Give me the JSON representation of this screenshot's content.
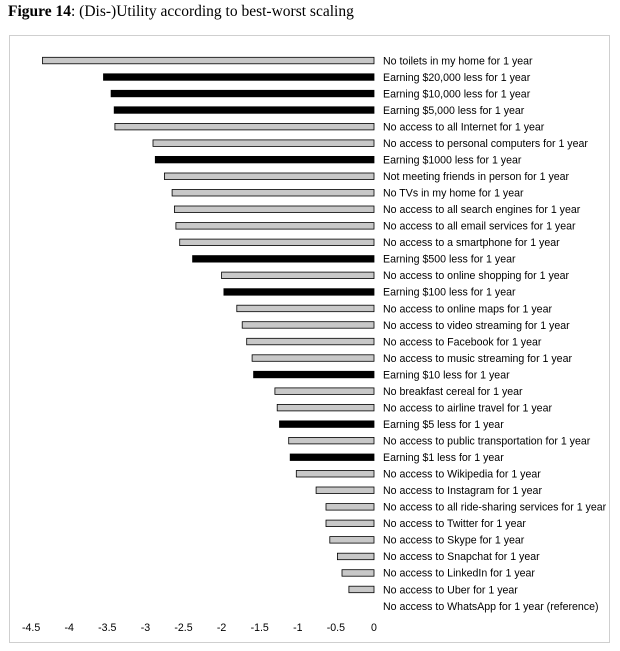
{
  "caption": {
    "figure_label": "Figure 14",
    "title": ": (Dis-)Utility according to best-worst scaling"
  },
  "chart_data": {
    "type": "bar",
    "orientation": "horizontal",
    "xlim": [
      -4.5,
      0
    ],
    "xticks": [
      "-4.5",
      "-4",
      "-3.5",
      "-3",
      "-2.5",
      "-2",
      "-1.5",
      "-1",
      "-0.5",
      "0"
    ],
    "grid": false,
    "legend": "none",
    "colors": {
      "money": "#000000",
      "good": "#c8c8c8",
      "outline": "#000000"
    },
    "bars": [
      {
        "label": "No toilets in my home for 1 year",
        "value": -4.35,
        "kind": "good"
      },
      {
        "label": "Earning $20,000 less for 1 year",
        "value": -3.55,
        "kind": "money"
      },
      {
        "label": "Earning $10,000 less for 1 year",
        "value": -3.45,
        "kind": "money"
      },
      {
        "label": "Earning $5,000 less for 1 year",
        "value": -3.41,
        "kind": "money"
      },
      {
        "label": "No access to all Internet for 1 year",
        "value": -3.4,
        "kind": "good"
      },
      {
        "label": "No access to personal computers for 1 year",
        "value": -2.9,
        "kind": "good"
      },
      {
        "label": "Earning $1000 less for 1 year",
        "value": -2.87,
        "kind": "money"
      },
      {
        "label": "Not meeting friends in person for 1 year",
        "value": -2.75,
        "kind": "good"
      },
      {
        "label": "No TVs in my home for 1 year",
        "value": -2.65,
        "kind": "good"
      },
      {
        "label": "No access to all search engines for 1 year",
        "value": -2.62,
        "kind": "good"
      },
      {
        "label": "No access to all email services for 1 year",
        "value": -2.6,
        "kind": "good"
      },
      {
        "label": "No access to a smartphone for 1 year",
        "value": -2.55,
        "kind": "good"
      },
      {
        "label": "Earning $500 less for 1 year",
        "value": -2.38,
        "kind": "money"
      },
      {
        "label": "No access to online shopping for 1 year",
        "value": -2.0,
        "kind": "good"
      },
      {
        "label": "Earning $100 less for 1 year",
        "value": -1.97,
        "kind": "money"
      },
      {
        "label": "No access to online maps for 1 year",
        "value": -1.8,
        "kind": "good"
      },
      {
        "label": "No access to video streaming for 1 year",
        "value": -1.73,
        "kind": "good"
      },
      {
        "label": "No access to Facebook for 1 year",
        "value": -1.67,
        "kind": "good"
      },
      {
        "label": "No access to music streaming for 1 year",
        "value": -1.6,
        "kind": "good"
      },
      {
        "label": "Earning $10 less for 1 year",
        "value": -1.58,
        "kind": "money"
      },
      {
        "label": "No breakfast cereal for 1 year",
        "value": -1.3,
        "kind": "good"
      },
      {
        "label": "No access to airline travel for 1 year",
        "value": -1.27,
        "kind": "good"
      },
      {
        "label": "Earning $5 less for 1 year",
        "value": -1.24,
        "kind": "money"
      },
      {
        "label": "No access to public transportation for 1 year",
        "value": -1.12,
        "kind": "good"
      },
      {
        "label": "Earning $1 less for 1 year",
        "value": -1.1,
        "kind": "money"
      },
      {
        "label": "No access to Wikipedia for 1 year",
        "value": -1.02,
        "kind": "good"
      },
      {
        "label": "No access to Instagram for 1 year",
        "value": -0.76,
        "kind": "good"
      },
      {
        "label": "No access to all ride-sharing services for 1 year",
        "value": -0.63,
        "kind": "good"
      },
      {
        "label": "No access to Twitter for 1 year",
        "value": -0.63,
        "kind": "good"
      },
      {
        "label": "No access to Skype for 1 year",
        "value": -0.58,
        "kind": "good"
      },
      {
        "label": "No access to Snapchat for 1 year",
        "value": -0.48,
        "kind": "good"
      },
      {
        "label": "No access to LinkedIn for 1 year",
        "value": -0.42,
        "kind": "good"
      },
      {
        "label": "No access to Uber for 1 year",
        "value": -0.33,
        "kind": "good"
      },
      {
        "label": "No access to WhatsApp for 1 year (reference)",
        "value": 0,
        "kind": "good"
      }
    ]
  }
}
